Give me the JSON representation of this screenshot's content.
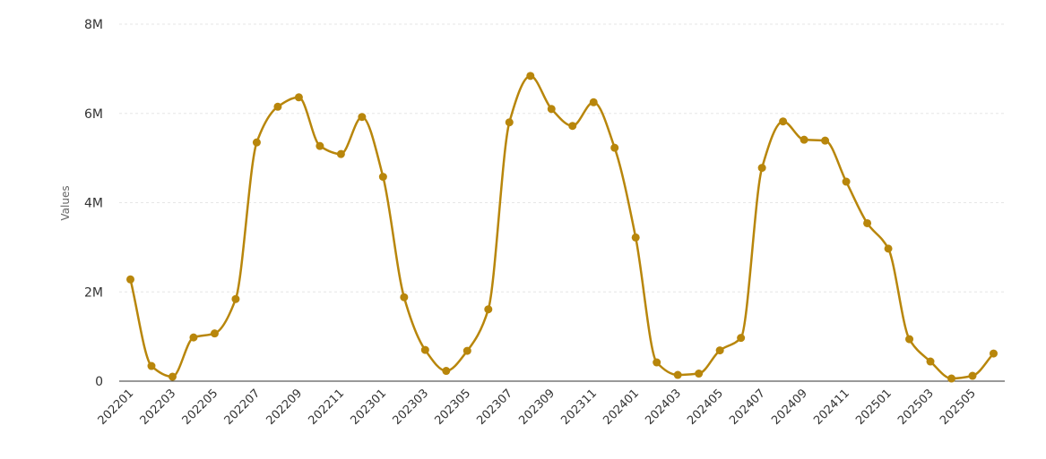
{
  "chart_data": {
    "type": "line",
    "ylabel": "Values",
    "ylim": [
      0,
      8000000
    ],
    "yticks": [
      {
        "value": 0,
        "label": "0"
      },
      {
        "value": 2000000,
        "label": "2M"
      },
      {
        "value": 4000000,
        "label": "4M"
      },
      {
        "value": 6000000,
        "label": "6M"
      },
      {
        "value": 8000000,
        "label": "8M"
      }
    ],
    "grid": true,
    "smooth": true,
    "colors": {
      "line": "#b8860b",
      "marker": "#b8860b",
      "axis": "#333333",
      "grid": "#e6e6e6"
    },
    "x": [
      "202201",
      "202202",
      "202203",
      "202204",
      "202205",
      "202206",
      "202207",
      "202208",
      "202209",
      "202210",
      "202211",
      "202212",
      "202301",
      "202302",
      "202303",
      "202304",
      "202305",
      "202306",
      "202307",
      "202308",
      "202309",
      "202310",
      "202311",
      "202312",
      "202401",
      "202402",
      "202403",
      "202404",
      "202405",
      "202406",
      "202407",
      "202408",
      "202409",
      "202410",
      "202411",
      "202412",
      "202501",
      "202502",
      "202503",
      "202504",
      "202505",
      "202506"
    ],
    "x_tick_labels": [
      "202201",
      "202203",
      "202205",
      "202207",
      "202209",
      "202211",
      "202301",
      "202303",
      "202305",
      "202307",
      "202309",
      "202311",
      "202401",
      "202403",
      "202405",
      "202407",
      "202409",
      "202411",
      "202501",
      "202503",
      "202505"
    ],
    "series": [
      {
        "values": [
          2280000,
          340000,
          100000,
          980000,
          1070000,
          1840000,
          5350000,
          6150000,
          6360000,
          5270000,
          5090000,
          5920000,
          4580000,
          1880000,
          700000,
          230000,
          680000,
          1610000,
          5800000,
          6840000,
          6100000,
          5720000,
          6250000,
          5230000,
          3220000,
          420000,
          140000,
          170000,
          690000,
          970000,
          4780000,
          5820000,
          5410000,
          5390000,
          4470000,
          3540000,
          2970000,
          940000,
          440000,
          60000,
          120000,
          620000
        ]
      }
    ]
  }
}
